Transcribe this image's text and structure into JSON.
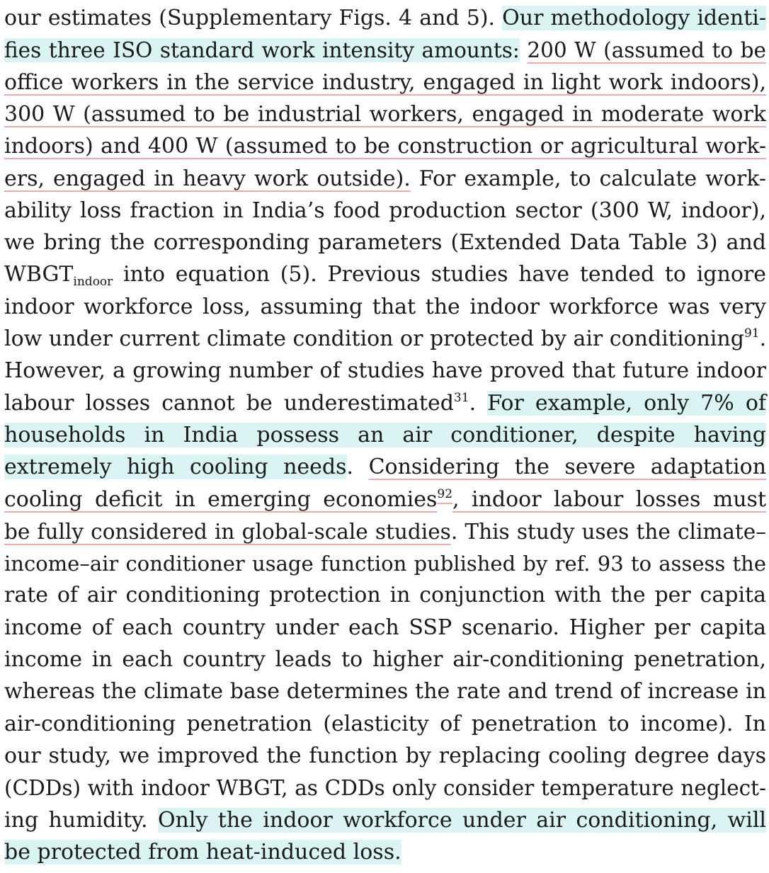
{
  "lines": [
    {
      "segments": [
        {
          "text": "our estimates (Supplementary Figs. 4 and 5). ",
          "style": "plain"
        },
        {
          "text": "Our methodology identi-",
          "style": "highlight"
        }
      ]
    },
    {
      "segments": [
        {
          "text": "fies three ISO standard work intensity amounts:",
          "style": "highlight"
        },
        {
          "text": " ",
          "style": "plain"
        },
        {
          "text": "200 W (assumed to be",
          "style": "underline"
        }
      ]
    },
    {
      "segments": [
        {
          "text": "office workers in the service industry, engaged in light work indoors),",
          "style": "underline"
        }
      ]
    },
    {
      "segments": [
        {
          "text": "300 W (assumed to be industrial workers, engaged in moderate work",
          "style": "underline"
        }
      ]
    },
    {
      "segments": [
        {
          "text": "indoors) and 400 W (assumed to be construction or agricultural work-",
          "style": "underline"
        }
      ]
    },
    {
      "segments": [
        {
          "text": "ers, engaged in heavy work outside).",
          "style": "underline"
        },
        {
          "text": " For example, to calculate work-",
          "style": "plain"
        }
      ]
    },
    {
      "segments": [
        {
          "text": "ability loss fraction in India’s food production sector (300 W, indoor),",
          "style": "plain"
        }
      ]
    },
    {
      "segments": [
        {
          "text": "we bring the corresponding parameters (Extended Data Table 3) and",
          "style": "plain"
        }
      ]
    },
    {
      "segments": [
        {
          "text": "WBGT",
          "style": "plain"
        },
        {
          "text": "indoor",
          "style": "sub"
        },
        {
          "text": " into equation (5). Previous studies have tended to ignore",
          "style": "plain"
        }
      ]
    },
    {
      "segments": [
        {
          "text": "indoor workforce loss, assuming that the indoor workforce was very",
          "style": "plain"
        }
      ]
    },
    {
      "segments": [
        {
          "text": "low under current climate condition or protected by air conditioning",
          "style": "plain"
        },
        {
          "text": "91",
          "style": "sup"
        },
        {
          "text": ".",
          "style": "plain"
        }
      ]
    },
    {
      "segments": [
        {
          "text": "However, a growing number of studies have proved that future indoor",
          "style": "plain"
        }
      ]
    },
    {
      "segments": [
        {
          "text": "labour losses cannot be underestimated",
          "style": "plain"
        },
        {
          "text": "31",
          "style": "sup"
        },
        {
          "text": ". ",
          "style": "plain"
        },
        {
          "text": "For example, only 7% of",
          "style": "highlight"
        }
      ]
    },
    {
      "segments": [
        {
          "text": "households in India possess an air conditioner, despite having",
          "style": "highlight"
        }
      ]
    },
    {
      "segments": [
        {
          "text": "extremely high cooling needs",
          "style": "highlight"
        },
        {
          "text": ". ",
          "style": "plain"
        },
        {
          "text": "Considering the severe adaptation",
          "style": "underline"
        }
      ]
    },
    {
      "segments": [
        {
          "text": "cooling deficit in emerging economies",
          "style": "underline"
        },
        {
          "text": "92",
          "style": "sup-underline"
        },
        {
          "text": ", indoor labour losses must",
          "style": "underline"
        }
      ]
    },
    {
      "segments": [
        {
          "text": "be fully considered in global-scale studies",
          "style": "underline"
        },
        {
          "text": ". This study uses the climate–",
          "style": "plain"
        }
      ]
    },
    {
      "segments": [
        {
          "text": "income–air conditioner usage function published by ref. 93 to assess the",
          "style": "plain"
        }
      ]
    },
    {
      "segments": [
        {
          "text": "rate of air conditioning protection in conjunction with the per capita",
          "style": "plain"
        }
      ]
    },
    {
      "segments": [
        {
          "text": "income of each country under each SSP scenario. Higher per capita",
          "style": "plain"
        }
      ]
    },
    {
      "segments": [
        {
          "text": "income in each country leads to higher air-conditioning penetration,",
          "style": "plain"
        }
      ]
    },
    {
      "segments": [
        {
          "text": "whereas the climate base determines the rate and trend of increase in",
          "style": "plain"
        }
      ]
    },
    {
      "segments": [
        {
          "text": "air-conditioning penetration (elasticity of penetration to income). In",
          "style": "plain"
        }
      ]
    },
    {
      "segments": [
        {
          "text": "our study, we improved the function by replacing cooling degree days",
          "style": "plain"
        }
      ]
    },
    {
      "segments": [
        {
          "text": "(CDDs) with indoor WBGT, as CDDs only consider temperature neglect-",
          "style": "plain"
        }
      ]
    },
    {
      "segments": [
        {
          "text": "ing humidity. ",
          "style": "plain"
        },
        {
          "text": "Only the indoor workforce under air conditioning, will",
          "style": "highlight"
        }
      ]
    },
    {
      "segments": [
        {
          "text": "be protected from heat-induced loss.",
          "style": "highlight"
        }
      ]
    }
  ],
  "colors": {
    "text": "#1a1a1a",
    "highlight": "#d9f4f2",
    "underline": "#f0a9a9",
    "background": "#ffffff"
  }
}
